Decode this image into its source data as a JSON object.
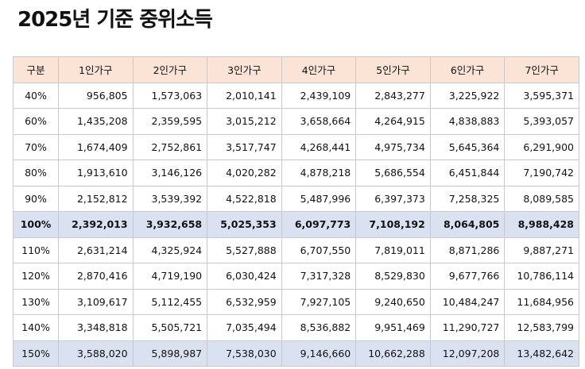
{
  "title": "2025년 기준 중위소득",
  "table": {
    "headers": [
      "구분",
      "1인가구",
      "2인가구",
      "3인가구",
      "4인가구",
      "5인가구",
      "6인가구",
      "7인가구"
    ],
    "rows": [
      {
        "cat": "40%",
        "values": [
          "956,805",
          "1,573,063",
          "2,010,141",
          "2,439,109",
          "2,843,277",
          "3,225,922",
          "3,595,371"
        ]
      },
      {
        "cat": "60%",
        "values": [
          "1,435,208",
          "2,359,595",
          "3,015,212",
          "3,658,664",
          "4,264,915",
          "4,838,883",
          "5,393,057"
        ]
      },
      {
        "cat": "70%",
        "values": [
          "1,674,409",
          "2,752,861",
          "3,517,747",
          "4,268,441",
          "4,975,734",
          "5,645,364",
          "6,291,900"
        ]
      },
      {
        "cat": "80%",
        "values": [
          "1,913,610",
          "3,146,126",
          "4,020,282",
          "4,878,218",
          "5,686,554",
          "6,451,844",
          "7,190,742"
        ]
      },
      {
        "cat": "90%",
        "values": [
          "2,152,812",
          "3,539,392",
          "4,522,818",
          "5,487,996",
          "6,397,373",
          "7,258,325",
          "8,089,585"
        ]
      },
      {
        "cat": "100%",
        "values": [
          "2,392,013",
          "3,932,658",
          "5,025,353",
          "6,097,773",
          "7,108,192",
          "8,064,805",
          "8,988,428"
        ],
        "highlight": true,
        "bold": true
      },
      {
        "cat": "110%",
        "values": [
          "2,631,214",
          "4,325,924",
          "5,527,888",
          "6,707,550",
          "7,819,011",
          "8,871,286",
          "9,887,271"
        ]
      },
      {
        "cat": "120%",
        "values": [
          "2,870,416",
          "4,719,190",
          "6,030,424",
          "7,317,328",
          "8,529,830",
          "9,677,766",
          "10,786,114"
        ]
      },
      {
        "cat": "130%",
        "values": [
          "3,109,617",
          "5,112,455",
          "6,532,959",
          "7,927,105",
          "9,240,650",
          "10,484,247",
          "11,684,956"
        ]
      },
      {
        "cat": "140%",
        "values": [
          "3,348,818",
          "5,505,721",
          "7,035,494",
          "8,536,882",
          "9,951,469",
          "11,290,727",
          "12,583,799"
        ]
      },
      {
        "cat": "150%",
        "values": [
          "3,588,020",
          "5,898,987",
          "7,538,030",
          "9,146,660",
          "10,662,288",
          "12,097,208",
          "13,482,642"
        ],
        "highlight": true
      }
    ]
  },
  "colors": {
    "header_bg": "#fbe3d6",
    "highlight_bg": "#dae1f1",
    "border": "#c9c9c9"
  }
}
